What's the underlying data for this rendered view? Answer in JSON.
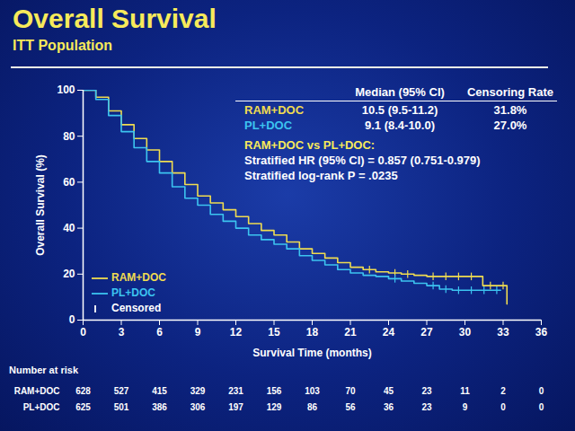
{
  "chart_data": {
    "type": "line",
    "title": "Overall Survival",
    "subtitle": "ITT Population",
    "x_label": "Survival Time (months)",
    "y_label": "Overall Survival (%)",
    "xlim": [
      0,
      36
    ],
    "xticks": [
      0,
      3,
      6,
      9,
      12,
      15,
      18,
      21,
      24,
      27,
      30,
      33,
      36
    ],
    "ylim": [
      0,
      100
    ],
    "yticks": [
      0,
      20,
      40,
      60,
      80,
      100
    ],
    "grid": false,
    "legend": "bottom-left",
    "line_style": "step",
    "censored_label": "Censored",
    "series": [
      {
        "name": "RAM+DOC",
        "color": "#f0dc50",
        "x": [
          0,
          1,
          2,
          3,
          4,
          5,
          6,
          7,
          8,
          9,
          10,
          11,
          12,
          13,
          14,
          15,
          16,
          17,
          18,
          19,
          20,
          21,
          22,
          23,
          24,
          25,
          26,
          27,
          28,
          31.4,
          33.3
        ],
        "values": [
          100,
          97,
          91,
          85,
          79,
          74,
          69,
          64,
          59,
          54,
          51,
          48,
          45,
          42,
          39,
          37,
          34,
          31,
          29,
          27,
          25,
          23,
          22,
          21,
          20.5,
          20,
          19.5,
          19,
          19,
          15,
          7
        ],
        "censored": {
          "x": [
            22.5,
            24.5,
            25.5,
            27.5,
            28.5,
            29.5,
            30.5,
            32,
            33
          ],
          "values": [
            22,
            20.5,
            20,
            19,
            19,
            19,
            19,
            15,
            15
          ]
        }
      },
      {
        "name": "PL+DOC",
        "color": "#3cc4f0",
        "x": [
          0,
          1,
          2,
          3,
          4,
          5,
          6,
          7,
          8,
          9,
          10,
          11,
          12,
          13,
          14,
          15,
          16,
          17,
          18,
          19,
          20,
          21,
          22,
          23,
          24,
          25,
          26,
          27,
          28,
          29,
          30,
          32.8
        ],
        "values": [
          100,
          96,
          89,
          82,
          75,
          69,
          64,
          58,
          53,
          50,
          46,
          43,
          40,
          37,
          35,
          33,
          31,
          28,
          26,
          24,
          22,
          20.5,
          19.5,
          19,
          18,
          17,
          16,
          15,
          13.5,
          13,
          13,
          13
        ],
        "censored": {
          "x": [
            24.5,
            27.5,
            28.5,
            29.5,
            30.5,
            31.5,
            32.5
          ],
          "values": [
            18,
            15,
            13.5,
            13,
            13,
            13,
            13
          ]
        }
      }
    ],
    "summary_table": {
      "columns": [
        "Median (95% CI)",
        "Censoring Rate"
      ],
      "rows": [
        {
          "name": "RAM+DOC",
          "cells": [
            "10.5 (9.5-11.2)",
            "31.8%"
          ]
        },
        {
          "name": "PL+DOC",
          "cells": [
            "9.1 (8.4-10.0)",
            "27.0%"
          ]
        }
      ]
    },
    "annotations": [
      "RAM+DOC vs PL+DOC:",
      "Stratified HR (95% CI) = 0.857 (0.751-0.979)",
      "Stratified log-rank P = .0235"
    ],
    "number_at_risk": {
      "title": "Number at risk",
      "x": [
        0,
        3,
        6,
        9,
        12,
        15,
        18,
        21,
        24,
        27,
        30,
        33,
        36
      ],
      "rows": [
        {
          "name": "RAM+DOC",
          "values": [
            628,
            527,
            415,
            329,
            231,
            156,
            103,
            70,
            45,
            23,
            11,
            2,
            0
          ]
        },
        {
          "name": "PL+DOC",
          "values": [
            625,
            501,
            386,
            306,
            197,
            129,
            86,
            56,
            36,
            23,
            9,
            0,
            0
          ]
        }
      ]
    }
  }
}
